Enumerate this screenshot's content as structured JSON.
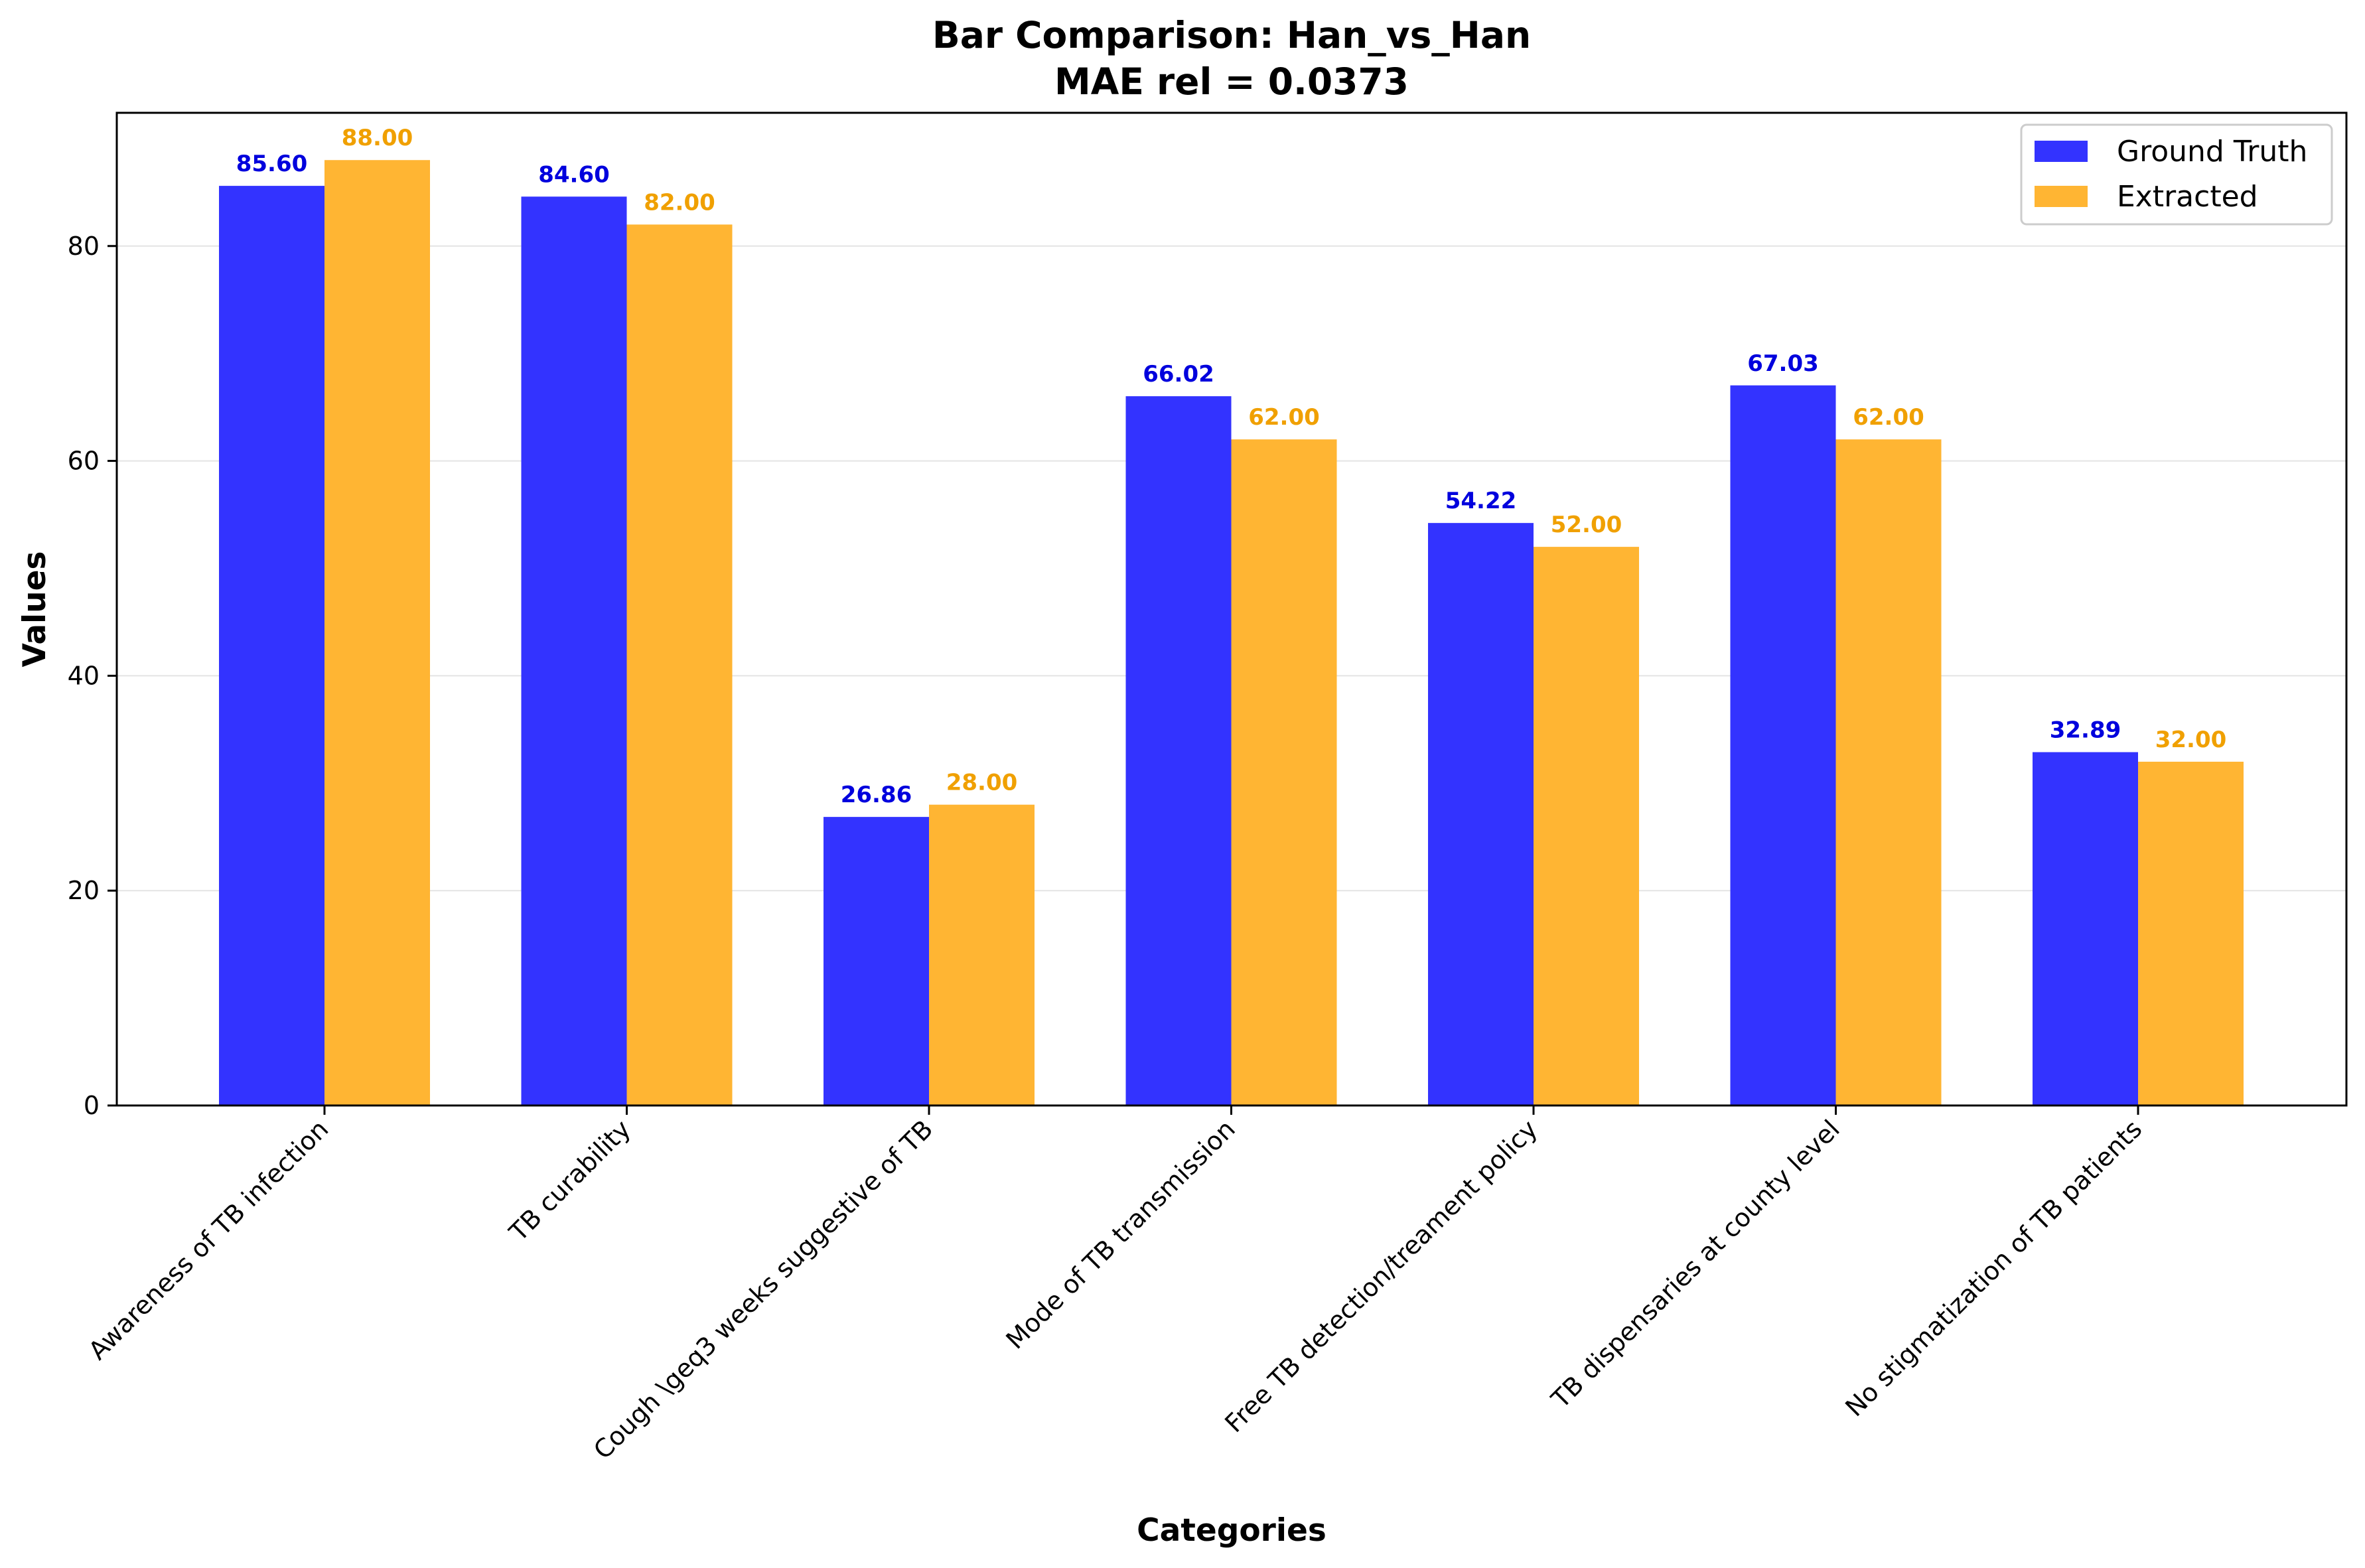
{
  "chart_data": {
    "type": "bar",
    "title": "Bar Comparison: Han_vs_Han",
    "subtitle": "MAE rel = 0.0373",
    "xlabel": "Categories",
    "ylabel": "Values",
    "ylim": [
      0,
      92.4
    ],
    "yticks": [
      0,
      20,
      40,
      60,
      80
    ],
    "grid": "horizontal",
    "legend_position": "top-right",
    "categories": [
      "Awareness of TB infection",
      "TB curability",
      "Cough \\geq3 weeks suggestive of TB",
      "Mode of TB transmission",
      "Free TB detection/treament policy",
      "TB dispensaries at county level",
      "No stigmatization of TB patients"
    ],
    "series": [
      {
        "name": "Ground Truth",
        "color": "#3333ff",
        "label_color": "#0000dd",
        "values": [
          85.6,
          84.6,
          26.86,
          66.02,
          54.22,
          67.03,
          32.89
        ],
        "labels": [
          "85.60",
          "84.60",
          "26.86",
          "66.02",
          "54.22",
          "67.03",
          "32.89"
        ]
      },
      {
        "name": "Extracted",
        "color": "#ffb533",
        "label_color": "#f0a000",
        "values": [
          88.0,
          82.0,
          28.0,
          62.0,
          52.0,
          62.0,
          32.0
        ],
        "labels": [
          "88.00",
          "82.00",
          "28.00",
          "62.00",
          "52.00",
          "62.00",
          "32.00"
        ]
      }
    ]
  }
}
